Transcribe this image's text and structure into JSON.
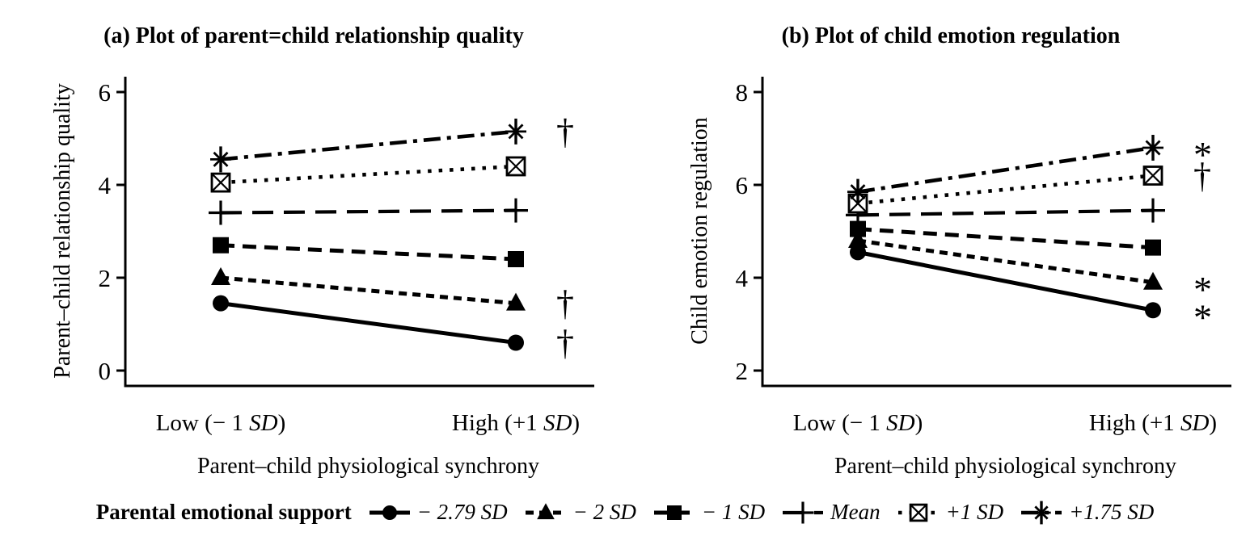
{
  "figure": {
    "description": "Two-panel interaction plot of parent-child physiological synchrony by parental emotional support",
    "background_color": "#ffffff",
    "foreground_color": "#000000"
  },
  "chart_data": [
    {
      "type": "line",
      "panel": "a",
      "title": "(a) Plot of parent=child relationship quality",
      "xlabel": "Parent–child physiological synchrony",
      "ylabel": "Parent–child relationship quality",
      "categories": [
        "Low (− 1 SD)",
        "High (+1 SD)"
      ],
      "yticks": [
        0,
        2,
        4,
        6
      ],
      "ylim": [
        -0.33,
        6.33
      ],
      "grid": false,
      "legend_position": "shared-bottom",
      "series": [
        {
          "name": "− 2.79 SD",
          "marker": "filled-circle",
          "line": "solid",
          "values": [
            1.45,
            0.6
          ],
          "annotations": [
            "",
            "†"
          ]
        },
        {
          "name": "− 2 SD",
          "marker": "filled-triangle",
          "line": "short-dash",
          "values": [
            2.0,
            1.45
          ],
          "annotations": [
            "",
            "†"
          ]
        },
        {
          "name": "− 1 SD",
          "marker": "filled-square",
          "line": "dash",
          "values": [
            2.7,
            2.4
          ],
          "annotations": [
            "",
            ""
          ]
        },
        {
          "name": "Mean",
          "marker": "plus",
          "line": "long-dash",
          "values": [
            3.4,
            3.45
          ],
          "annotations": [
            "",
            ""
          ]
        },
        {
          "name": "+1 SD",
          "marker": "boxed-x",
          "line": "dotted",
          "values": [
            4.05,
            4.4
          ],
          "annotations": [
            "",
            ""
          ]
        },
        {
          "name": "+1.75 SD",
          "marker": "asterisk-star",
          "line": "dash-dot",
          "values": [
            4.55,
            5.15
          ],
          "annotations": [
            "",
            "†"
          ]
        }
      ]
    },
    {
      "type": "line",
      "panel": "b",
      "title": "(b) Plot of child emotion regulation",
      "xlabel": "Parent–child physiological synchrony",
      "ylabel": "Child emotion regulation",
      "categories": [
        "Low (− 1 SD)",
        "High (+1 SD)"
      ],
      "yticks": [
        2,
        4,
        6,
        8
      ],
      "ylim": [
        1.67,
        8.33
      ],
      "grid": false,
      "legend_position": "shared-bottom",
      "series": [
        {
          "name": "− 2.79 SD",
          "marker": "filled-circle",
          "line": "solid",
          "values": [
            4.55,
            3.3
          ],
          "annotations": [
            "",
            "*"
          ]
        },
        {
          "name": "− 2 SD",
          "marker": "filled-triangle",
          "line": "short-dash",
          "values": [
            4.8,
            3.9
          ],
          "annotations": [
            "",
            "*"
          ]
        },
        {
          "name": "− 1 SD",
          "marker": "filled-square",
          "line": "dash",
          "values": [
            5.05,
            4.65
          ],
          "annotations": [
            "",
            ""
          ]
        },
        {
          "name": "Mean",
          "marker": "plus",
          "line": "long-dash",
          "values": [
            5.35,
            5.45
          ],
          "annotations": [
            "",
            ""
          ]
        },
        {
          "name": "+1 SD",
          "marker": "boxed-x",
          "line": "dotted",
          "values": [
            5.6,
            6.2
          ],
          "annotations": [
            "",
            "†"
          ]
        },
        {
          "name": "+1.75 SD",
          "marker": "asterisk-star",
          "line": "dash-dot",
          "values": [
            5.85,
            6.8
          ],
          "annotations": [
            "",
            "*"
          ]
        }
      ]
    }
  ],
  "legend": {
    "title": "Parental emotional support",
    "items": [
      {
        "label": "− 2.79 SD",
        "marker": "filled-circle",
        "line": "solid"
      },
      {
        "label": "− 2 SD",
        "marker": "filled-triangle",
        "line": "short-dash"
      },
      {
        "label": "− 1 SD",
        "marker": "filled-square",
        "line": "dash"
      },
      {
        "label": "Mean",
        "marker": "plus",
        "line": "long-dash"
      },
      {
        "label": "+1 SD",
        "marker": "boxed-x",
        "line": "dotted"
      },
      {
        "label": "+1.75 SD",
        "marker": "asterisk-star",
        "line": "dash-dot"
      }
    ]
  },
  "annotation_symbols": {
    "dagger": "†",
    "asterisk": "*"
  },
  "colors": {
    "line": "#000000",
    "marker_fill": "#000000",
    "boxed_x_fill": "#ffffff",
    "background": "#ffffff"
  }
}
